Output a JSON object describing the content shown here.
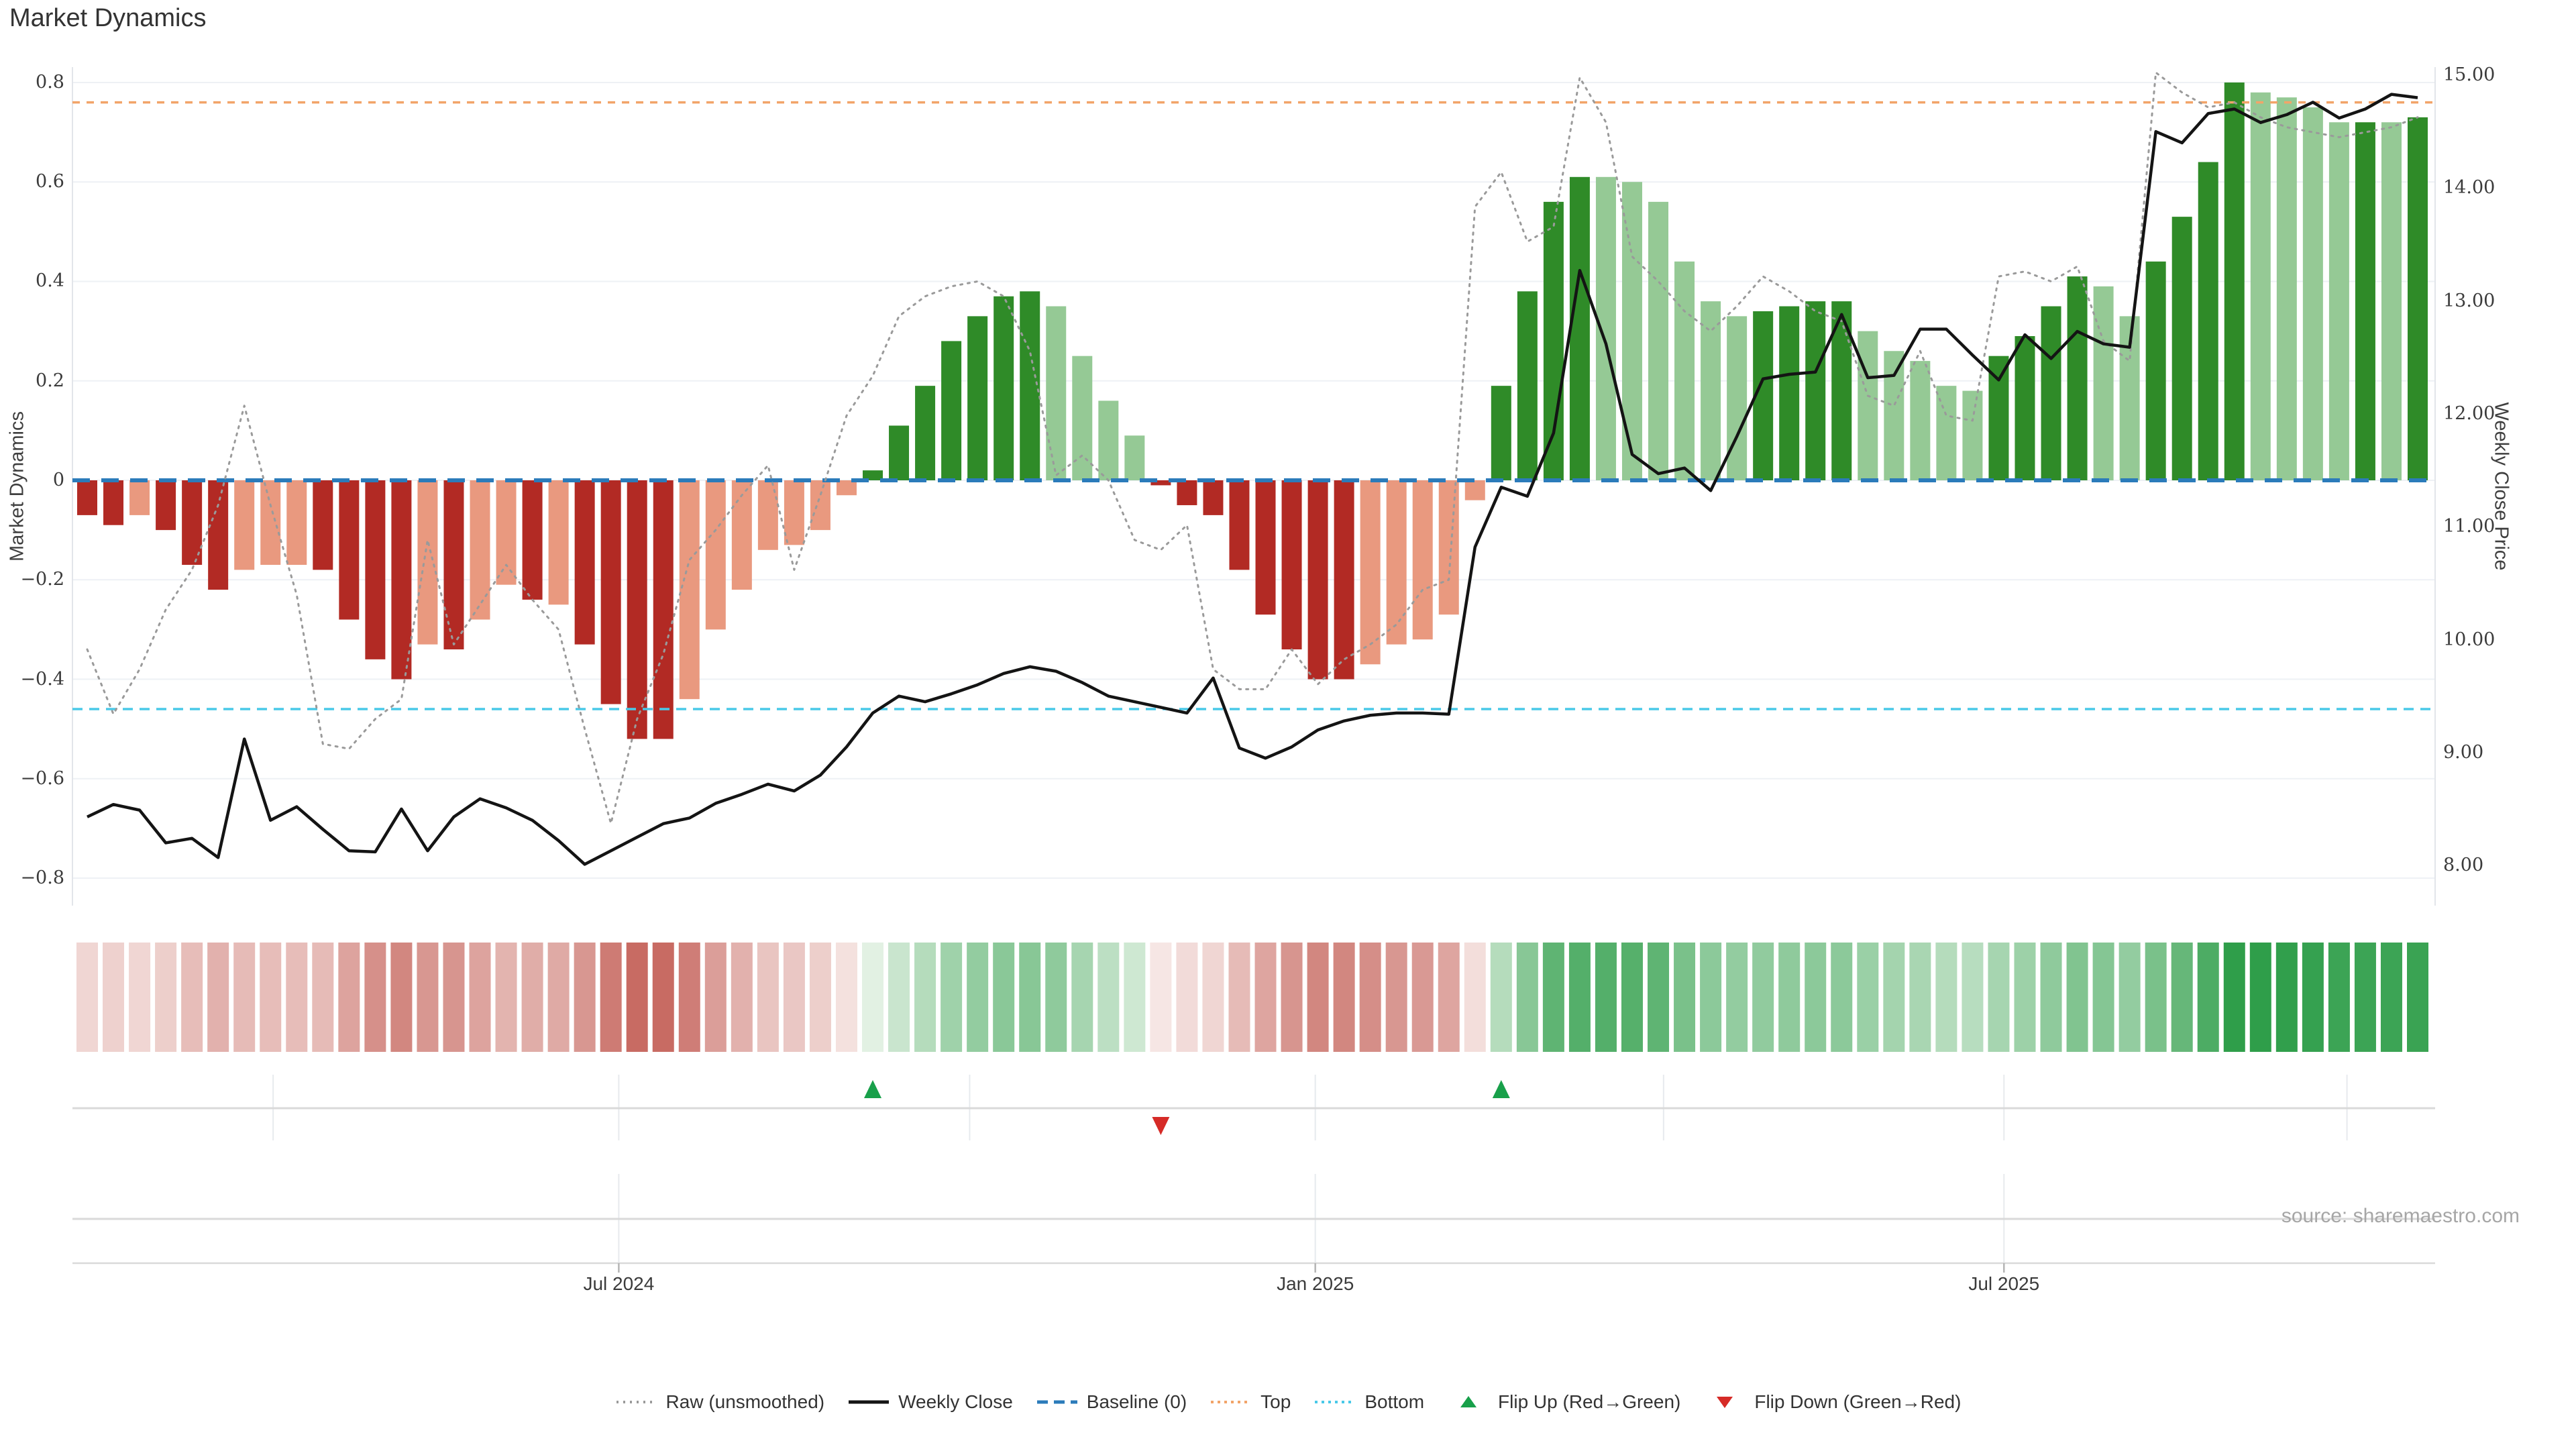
{
  "title": "Market Dynamics",
  "source_note": "source: sharemaestro.com",
  "axes": {
    "left_label": "Market Dynamics",
    "right_label": "Weekly Close Price",
    "left_tick_labels": [
      "0.8",
      "0.6",
      "0.4",
      "0.2",
      "0",
      "−0.2",
      "−0.4",
      "−0.6",
      "−0.8"
    ],
    "left_tick_values": [
      0.8,
      0.6,
      0.4,
      0.2,
      0,
      -0.2,
      -0.4,
      -0.6,
      -0.8
    ],
    "right_tick_labels": [
      "15.00",
      "14.00",
      "13.00",
      "12.00",
      "11.00",
      "10.00",
      "9.00",
      "8.00"
    ],
    "right_tick_values": [
      15,
      14,
      13,
      12,
      11,
      10,
      9,
      8
    ],
    "x_tick_labels": [
      "Jul 2024",
      "Jan 2025",
      "Jul 2025"
    ]
  },
  "legend": [
    {
      "label": "Raw (unsmoothed)",
      "swatch": "dotted",
      "color": "#9a9a9a"
    },
    {
      "label": "Weekly Close",
      "swatch": "solid",
      "color": "#141414"
    },
    {
      "label": "Baseline (0)",
      "swatch": "dashed",
      "color": "#2b7bba"
    },
    {
      "label": "Top",
      "swatch": "dots",
      "color": "#f2a469"
    },
    {
      "label": "Bottom",
      "swatch": "dots",
      "color": "#49c9e8"
    },
    {
      "label": "Flip Up (Red→Green)",
      "swatch": "triangle-up",
      "color": "#18a04a"
    },
    {
      "label": "Flip Down (Green→Red)",
      "swatch": "triangle-down",
      "color": "#d62b27"
    }
  ],
  "colors": {
    "dark_red": "#b22a24",
    "light_red": "#e9997f",
    "dark_green": "#2f8b28",
    "light_green": "#95c995",
    "raw_line": "#9a9a9a",
    "close_line": "#141414",
    "baseline": "#2b7bba",
    "top_line": "#f2a469",
    "bottom_line": "#49c9e8",
    "flip_up": "#18a04a",
    "flip_down": "#d62b27",
    "grid": "#eef1f5",
    "spine": "#e2e5ea",
    "subgrid": "#e7eaee",
    "subline": "#d9d9d9",
    "text": "#3b3b3b"
  },
  "chart_data": {
    "type": "combo",
    "title": "Market Dynamics",
    "x_unit": "week",
    "n_weeks": 90,
    "left_axis": {
      "label": "Market Dynamics",
      "range": [
        -0.85,
        0.83
      ],
      "ticks": [
        0.8,
        0.6,
        0.4,
        0.2,
        0,
        -0.2,
        -0.4,
        -0.6,
        -0.8
      ],
      "grid": true
    },
    "right_axis": {
      "label": "Weekly Close Price",
      "range": [
        7.65,
        15.07
      ],
      "ticks": [
        15,
        14,
        13,
        12,
        11,
        10,
        9,
        8
      ],
      "grid": false
    },
    "x_ticks": {
      "labels": [
        "Jul 2024",
        "Jan 2025",
        "Jul 2025"
      ],
      "week_positions": [
        20.3,
        46.9,
        73.2
      ]
    },
    "quarter_grid_weeks": [
      7.1,
      20.3,
      33.7,
      46.9,
      60.2,
      73.2,
      86.3
    ],
    "series": [
      {
        "name": "Market Dynamics (smoothed)",
        "type": "bar",
        "axis": "left",
        "values": [
          -0.07,
          -0.09,
          -0.07,
          -0.1,
          -0.17,
          -0.22,
          -0.18,
          -0.17,
          -0.17,
          -0.18,
          -0.28,
          -0.36,
          -0.4,
          -0.33,
          -0.34,
          -0.28,
          -0.21,
          -0.24,
          -0.25,
          -0.33,
          -0.45,
          -0.52,
          -0.52,
          -0.44,
          -0.3,
          -0.22,
          -0.14,
          -0.13,
          -0.1,
          -0.03,
          0.02,
          0.11,
          0.19,
          0.28,
          0.33,
          0.37,
          0.38,
          0.35,
          0.25,
          0.16,
          0.09,
          -0.01,
          -0.05,
          -0.07,
          -0.18,
          -0.27,
          -0.34,
          -0.4,
          -0.4,
          -0.37,
          -0.33,
          -0.32,
          -0.27,
          -0.04,
          0.19,
          0.38,
          0.56,
          0.61,
          0.61,
          0.6,
          0.56,
          0.44,
          0.36,
          0.33,
          0.34,
          0.35,
          0.36,
          0.36,
          0.3,
          0.26,
          0.24,
          0.19,
          0.18,
          0.25,
          0.29,
          0.35,
          0.41,
          0.39,
          0.33,
          0.44,
          0.53,
          0.64,
          0.8,
          0.78,
          0.77,
          0.75,
          0.72,
          0.72,
          0.72,
          0.73
        ],
        "style_codes": "RRrRRRrrrRRRRrRrrRrRRRRrrrrrrrGGGGGGGggggRRRRRRRRrrrrrGGGGggggggGGGGgggggGGGGggGGGGggggGgG",
        "style_legend": {
          "R": "dark_red strong negative",
          "r": "light_red weak negative",
          "G": "dark_green strong positive",
          "g": "light_green weak positive"
        }
      },
      {
        "name": "Raw (unsmoothed)",
        "type": "line",
        "style": "dotted",
        "axis": "left",
        "values": [
          -0.34,
          -0.47,
          -0.38,
          -0.26,
          -0.18,
          -0.05,
          0.15,
          -0.05,
          -0.23,
          -0.53,
          -0.54,
          -0.48,
          -0.44,
          -0.12,
          -0.33,
          -0.25,
          -0.17,
          -0.24,
          -0.3,
          -0.5,
          -0.69,
          -0.48,
          -0.35,
          -0.16,
          -0.1,
          -0.03,
          0.03,
          -0.18,
          -0.03,
          0.13,
          0.21,
          0.33,
          0.37,
          0.39,
          0.4,
          0.37,
          0.26,
          0.01,
          0.05,
          0.0,
          -0.12,
          -0.14,
          -0.09,
          -0.38,
          -0.42,
          -0.42,
          -0.34,
          -0.41,
          -0.36,
          -0.33,
          -0.29,
          -0.22,
          -0.2,
          0.55,
          0.62,
          0.48,
          0.51,
          0.81,
          0.72,
          0.45,
          0.4,
          0.34,
          0.3,
          0.35,
          0.41,
          0.38,
          0.34,
          0.32,
          0.17,
          0.15,
          0.26,
          0.13,
          0.12,
          0.41,
          0.42,
          0.4,
          0.43,
          0.28,
          0.24,
          0.82,
          0.78,
          0.75,
          0.76,
          0.73,
          0.71,
          0.7,
          0.69,
          0.7,
          0.71,
          0.73
        ]
      },
      {
        "name": "Weekly Close",
        "type": "line",
        "style": "solid",
        "axis": "right",
        "values": [
          8.43,
          8.54,
          8.49,
          8.2,
          8.24,
          8.07,
          9.12,
          8.4,
          8.52,
          8.32,
          8.13,
          8.12,
          8.5,
          8.13,
          8.43,
          8.59,
          8.51,
          8.4,
          8.22,
          8.01,
          8.13,
          8.25,
          8.37,
          8.42,
          8.55,
          8.63,
          8.72,
          8.66,
          8.8,
          9.05,
          9.35,
          9.5,
          9.45,
          9.52,
          9.6,
          9.7,
          9.76,
          9.72,
          9.62,
          9.5,
          9.45,
          9.4,
          9.35,
          9.66,
          9.04,
          8.95,
          9.05,
          9.2,
          9.28,
          9.33,
          9.35,
          9.35,
          9.34,
          10.82,
          11.35,
          11.27,
          11.83,
          13.27,
          12.62,
          11.64,
          11.47,
          11.52,
          11.32,
          11.8,
          12.31,
          12.35,
          12.37,
          12.88,
          12.32,
          12.34,
          12.75,
          12.75,
          12.52,
          12.3,
          12.7,
          12.49,
          12.73,
          12.62,
          12.59,
          14.5,
          14.4,
          14.66,
          14.7,
          14.58,
          14.65,
          14.76,
          14.62,
          14.7,
          14.83,
          14.8
        ]
      }
    ],
    "reference_lines": [
      {
        "name": "Baseline (0)",
        "axis": "left",
        "value": 0,
        "style": "dashed",
        "color": "#2b7bba"
      },
      {
        "name": "Top",
        "axis": "left",
        "value": 0.76,
        "style": "dotted",
        "color": "#f2a469"
      },
      {
        "name": "Bottom",
        "axis": "left",
        "value": -0.46,
        "style": "dotted",
        "color": "#49c9e8"
      }
    ],
    "markers": {
      "flip_up_weeks": [
        30,
        54
      ],
      "flip_down_weeks": [
        41
      ]
    },
    "heatmap_strip": {
      "description": "one cell per week colored by smoothed Market Dynamics value (red negative, green positive)",
      "source_series": "Market Dynamics (smoothed)"
    }
  }
}
